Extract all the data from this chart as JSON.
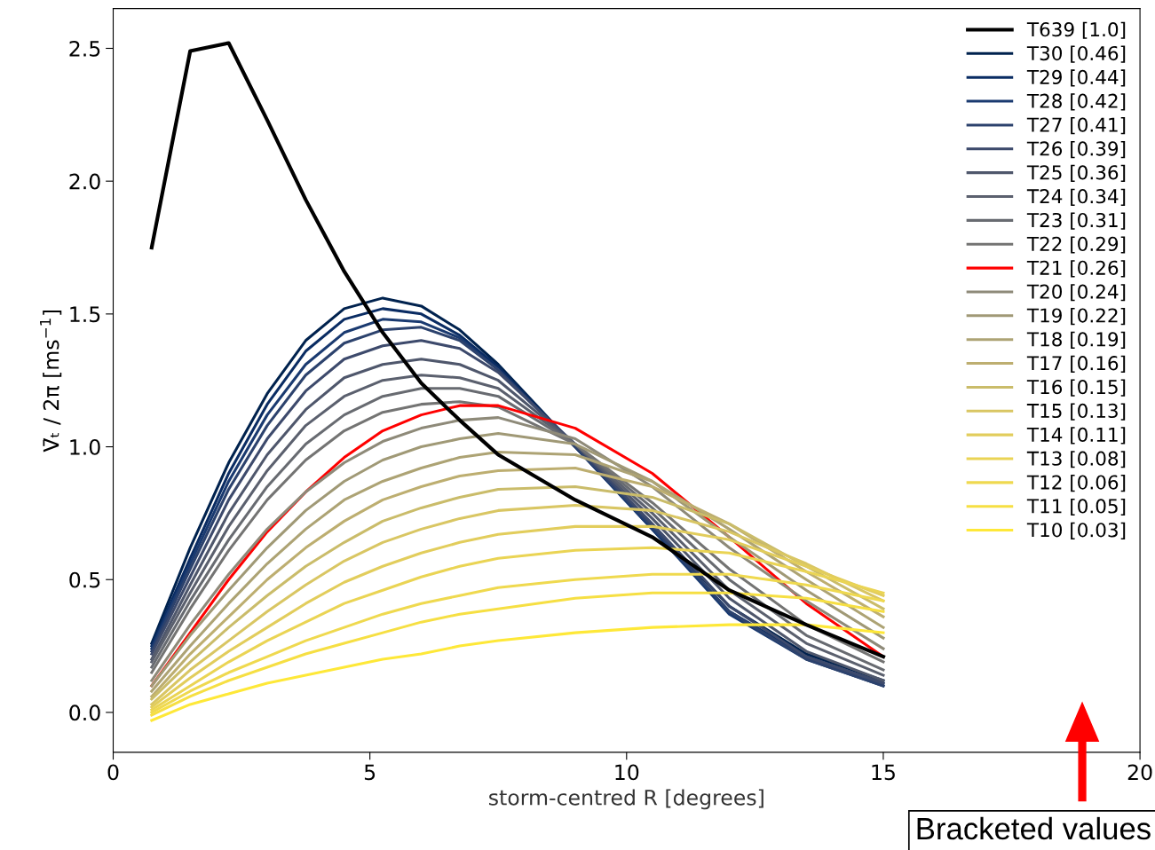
{
  "chart_data": {
    "type": "line",
    "xlabel": "storm-centred R [degrees]",
    "ylabel": "V̄ₜ / 2π [ms$^{−1}$]",
    "x": [
      0.75,
      1.5,
      2.25,
      3,
      3.75,
      4.5,
      5.25,
      6,
      6.75,
      7.5,
      9,
      10.5,
      12,
      13.5,
      15
    ],
    "xlim": [
      0,
      20
    ],
    "xticks": [
      0,
      5,
      10,
      15,
      20
    ],
    "ylim": [
      -0.15,
      2.65
    ],
    "yticks": [
      {
        "value": 0,
        "label": "0.0"
      },
      0.5,
      {
        "value": 1,
        "label": "1.0"
      },
      1.5,
      {
        "value": 2,
        "label": "2.0"
      },
      2.5
    ],
    "grid": false,
    "legend": "top right",
    "marker": "none",
    "line_style": "solid",
    "annotations": [
      "Bracketed values"
    ],
    "series": [
      {
        "name": "T639 [1.0]",
        "color": "#000000",
        "values": [
          1.75,
          2.49,
          2.52,
          2.23,
          1.93,
          1.66,
          1.43,
          1.24,
          1.1,
          0.97,
          0.8,
          0.66,
          0.46,
          0.33,
          0.21
        ]
      },
      {
        "name": "T30 [0.46]",
        "color": "#00224e",
        "values": [
          0.26,
          0.62,
          0.94,
          1.2,
          1.4,
          1.52,
          1.56,
          1.53,
          1.44,
          1.31,
          1.0,
          0.7,
          0.4,
          0.22,
          0.12
        ]
      },
      {
        "name": "T29 [0.44]",
        "color": "#0a2c63",
        "values": [
          0.25,
          0.58,
          0.9,
          1.16,
          1.36,
          1.48,
          1.52,
          1.5,
          1.42,
          1.3,
          1.0,
          0.69,
          0.38,
          0.21,
          0.11
        ]
      },
      {
        "name": "T28 [0.42]",
        "color": "#1a3a70",
        "values": [
          0.24,
          0.56,
          0.87,
          1.12,
          1.31,
          1.43,
          1.48,
          1.47,
          1.41,
          1.29,
          1.0,
          0.69,
          0.37,
          0.2,
          0.1
        ]
      },
      {
        "name": "T27 [0.41]",
        "color": "#2c426d",
        "values": [
          0.23,
          0.54,
          0.84,
          1.08,
          1.27,
          1.39,
          1.44,
          1.45,
          1.4,
          1.29,
          1.0,
          0.7,
          0.38,
          0.2,
          0.1
        ]
      },
      {
        "name": "T26 [0.39]",
        "color": "#3d4a6c",
        "values": [
          0.22,
          0.51,
          0.8,
          1.03,
          1.21,
          1.33,
          1.38,
          1.4,
          1.37,
          1.28,
          1.01,
          0.71,
          0.4,
          0.21,
          0.11
        ]
      },
      {
        "name": "T25 [0.36]",
        "color": "#4f576c",
        "values": [
          0.2,
          0.48,
          0.75,
          0.97,
          1.14,
          1.26,
          1.31,
          1.33,
          1.31,
          1.25,
          1.01,
          0.73,
          0.43,
          0.23,
          0.12
        ]
      },
      {
        "name": "T24 [0.34]",
        "color": "#5b606e",
        "values": [
          0.19,
          0.45,
          0.7,
          0.91,
          1.08,
          1.19,
          1.25,
          1.27,
          1.26,
          1.22,
          1.01,
          0.75,
          0.46,
          0.26,
          0.14
        ]
      },
      {
        "name": "T23 [0.31]",
        "color": "#686b71",
        "values": [
          0.17,
          0.42,
          0.65,
          0.85,
          1.01,
          1.12,
          1.19,
          1.22,
          1.22,
          1.19,
          1.01,
          0.77,
          0.5,
          0.29,
          0.16
        ]
      },
      {
        "name": "T22 [0.29]",
        "color": "#747473",
        "values": [
          0.15,
          0.39,
          0.61,
          0.8,
          0.95,
          1.06,
          1.13,
          1.16,
          1.17,
          1.15,
          1.01,
          0.79,
          0.54,
          0.33,
          0.19
        ]
      },
      {
        "name": "T21 [0.26]",
        "color": "#ff0000",
        "values": [
          0.1,
          0.3,
          0.5,
          0.68,
          0.83,
          0.96,
          1.06,
          1.12,
          1.155,
          1.155,
          1.07,
          0.9,
          0.66,
          0.41,
          0.21
        ]
      },
      {
        "name": "T20 [0.24]",
        "color": "#8e8a79",
        "values": [
          0.12,
          0.33,
          0.52,
          0.69,
          0.83,
          0.94,
          1.02,
          1.07,
          1.1,
          1.11,
          1.03,
          0.85,
          0.62,
          0.42,
          0.24
        ]
      },
      {
        "name": "T19 [0.22]",
        "color": "#a09976",
        "values": [
          0.1,
          0.29,
          0.46,
          0.62,
          0.76,
          0.87,
          0.95,
          1.0,
          1.03,
          1.05,
          1.01,
          0.87,
          0.66,
          0.46,
          0.28
        ]
      },
      {
        "name": "T18 [0.19]",
        "color": "#ada374",
        "values": [
          0.08,
          0.25,
          0.41,
          0.56,
          0.69,
          0.8,
          0.87,
          0.92,
          0.96,
          0.98,
          0.97,
          0.87,
          0.69,
          0.5,
          0.32
        ]
      },
      {
        "name": "T17 [0.16]",
        "color": "#bdae70",
        "values": [
          0.06,
          0.22,
          0.36,
          0.5,
          0.62,
          0.72,
          0.8,
          0.85,
          0.89,
          0.91,
          0.92,
          0.85,
          0.71,
          0.53,
          0.36
        ]
      },
      {
        "name": "T16 [0.15]",
        "color": "#cabc6a",
        "values": [
          0.05,
          0.19,
          0.32,
          0.44,
          0.55,
          0.64,
          0.72,
          0.77,
          0.81,
          0.84,
          0.85,
          0.81,
          0.71,
          0.55,
          0.39
        ]
      },
      {
        "name": "T15 [0.13]",
        "color": "#d9c663",
        "values": [
          0.03,
          0.16,
          0.27,
          0.38,
          0.48,
          0.57,
          0.64,
          0.69,
          0.73,
          0.76,
          0.78,
          0.76,
          0.68,
          0.56,
          0.42
        ]
      },
      {
        "name": "T14 [0.11]",
        "color": "#e2cd5c",
        "values": [
          0.02,
          0.13,
          0.23,
          0.32,
          0.41,
          0.49,
          0.55,
          0.6,
          0.64,
          0.67,
          0.7,
          0.7,
          0.65,
          0.55,
          0.44
        ]
      },
      {
        "name": "T13 [0.08]",
        "color": "#ead454",
        "values": [
          0.01,
          0.1,
          0.19,
          0.27,
          0.34,
          0.41,
          0.46,
          0.51,
          0.55,
          0.58,
          0.61,
          0.62,
          0.6,
          0.53,
          0.45
        ]
      },
      {
        "name": "T12 [0.06]",
        "color": "#efd94f",
        "values": [
          0.0,
          0.08,
          0.15,
          0.21,
          0.27,
          0.32,
          0.37,
          0.41,
          0.44,
          0.47,
          0.5,
          0.52,
          0.52,
          0.48,
          0.42
        ]
      },
      {
        "name": "T11 [0.05]",
        "color": "#f6df43",
        "values": [
          -0.01,
          0.06,
          0.12,
          0.17,
          0.22,
          0.26,
          0.3,
          0.34,
          0.37,
          0.39,
          0.43,
          0.45,
          0.45,
          0.43,
          0.38
        ]
      },
      {
        "name": "T10 [0.03]",
        "color": "#fee838",
        "values": [
          -0.03,
          0.03,
          0.07,
          0.11,
          0.14,
          0.17,
          0.2,
          0.22,
          0.25,
          0.27,
          0.3,
          0.32,
          0.33,
          0.33,
          0.3
        ]
      }
    ]
  }
}
